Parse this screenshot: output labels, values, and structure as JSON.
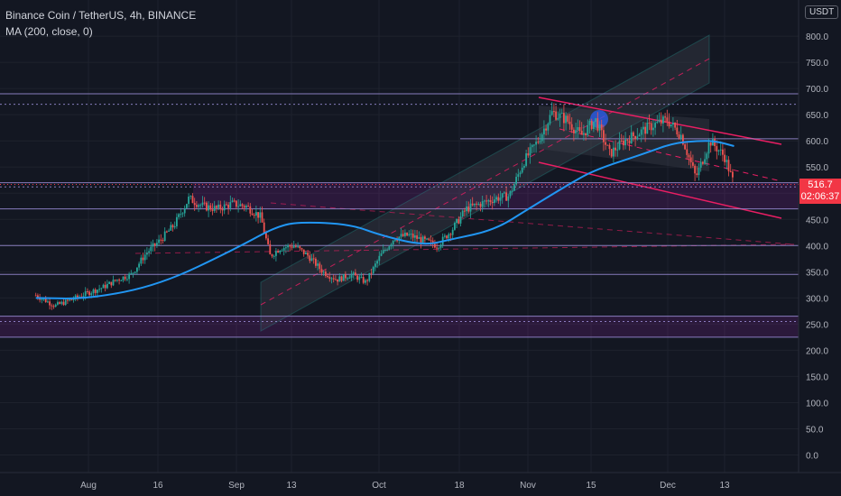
{
  "header": {
    "symbol_line": "Binance Coin / TetherUS, 4h, BINANCE",
    "indicator_line": "MA (200, close, 0)",
    "currency": "USDT"
  },
  "last_price": {
    "value": "516.7",
    "countdown": "02:06:37"
  },
  "colors": {
    "background": "#131722",
    "up": "#26a69a",
    "down": "#ef5350",
    "ma": "#2196f3",
    "hline": "#9c8ed8",
    "zone": "#9c27b0",
    "channel_fill": "#434651",
    "fork": "#e91e63"
  },
  "chart_data": {
    "type": "line",
    "xlabel": "",
    "ylabel": "",
    "x_ticks": [
      "Aug",
      "16",
      "Sep",
      "13",
      "Oct",
      "18",
      "Nov",
      "15",
      "Dec",
      "13"
    ],
    "y_ticks": [
      "800.0",
      "750.0",
      "700.0",
      "650.0",
      "600.0",
      "550.0",
      "500.0",
      "450.0",
      "400.0",
      "350.0",
      "300.0",
      "250.0",
      "200.0",
      "150.0",
      "100.0",
      "50.0",
      "0.0"
    ],
    "ylim": [
      -20,
      830
    ],
    "grid": true,
    "series": [
      {
        "name": "price",
        "x": [
          "Jul 21",
          "Jul 25",
          "Jul 28",
          "Aug 1",
          "Aug 4",
          "Aug 7",
          "Aug 10",
          "Aug 13",
          "Aug 16",
          "Aug 19",
          "Aug 22",
          "Aug 25",
          "Aug 28",
          "Aug 31",
          "Sep 3",
          "Sep 6",
          "Sep 8",
          "Sep 10",
          "Sep 13",
          "Sep 16",
          "Sep 19",
          "Sep 22",
          "Sep 25",
          "Sep 28",
          "Oct 1",
          "Oct 4",
          "Oct 7",
          "Oct 10",
          "Oct 13",
          "Oct 16",
          "Oct 19",
          "Oct 22",
          "Oct 25",
          "Oct 28",
          "Oct 31",
          "Nov 3",
          "Nov 6",
          "Nov 9",
          "Nov 12",
          "Nov 15",
          "Nov 18",
          "Nov 21",
          "Nov 24",
          "Nov 27",
          "Nov 30",
          "Dec 3",
          "Dec 6",
          "Dec 9",
          "Dec 12",
          "Dec 14"
        ],
        "values": [
          305,
          285,
          295,
          310,
          320,
          335,
          345,
          385,
          410,
          440,
          490,
          475,
          470,
          480,
          475,
          455,
          380,
          395,
          400,
          380,
          350,
          335,
          345,
          330,
          380,
          415,
          420,
          410,
          400,
          430,
          470,
          480,
          490,
          495,
          560,
          600,
          655,
          640,
          610,
          640,
          575,
          600,
          615,
          630,
          640,
          610,
          530,
          600,
          570,
          516.7
        ]
      },
      {
        "name": "MA (200, close, 0)",
        "x": [
          "Jul 21",
          "Aug 1",
          "Aug 16",
          "Sep 1",
          "Sep 10",
          "Sep 16",
          "Sep 25",
          "Oct 1",
          "Oct 10",
          "Oct 16",
          "Oct 25",
          "Nov 1",
          "Nov 10",
          "Nov 15",
          "Nov 25",
          "Dec 1",
          "Dec 6",
          "Dec 10",
          "Dec 14"
        ],
        "values": [
          300,
          298,
          325,
          395,
          440,
          445,
          440,
          420,
          400,
          412,
          430,
          470,
          520,
          545,
          575,
          595,
          600,
          600,
          590
        ]
      }
    ],
    "levels": [
      690,
      670,
      604,
      520,
      512,
      470,
      400,
      345,
      265,
      255,
      225
    ],
    "annotations": [
      "ascending channel",
      "descending channel",
      "support zone"
    ]
  }
}
